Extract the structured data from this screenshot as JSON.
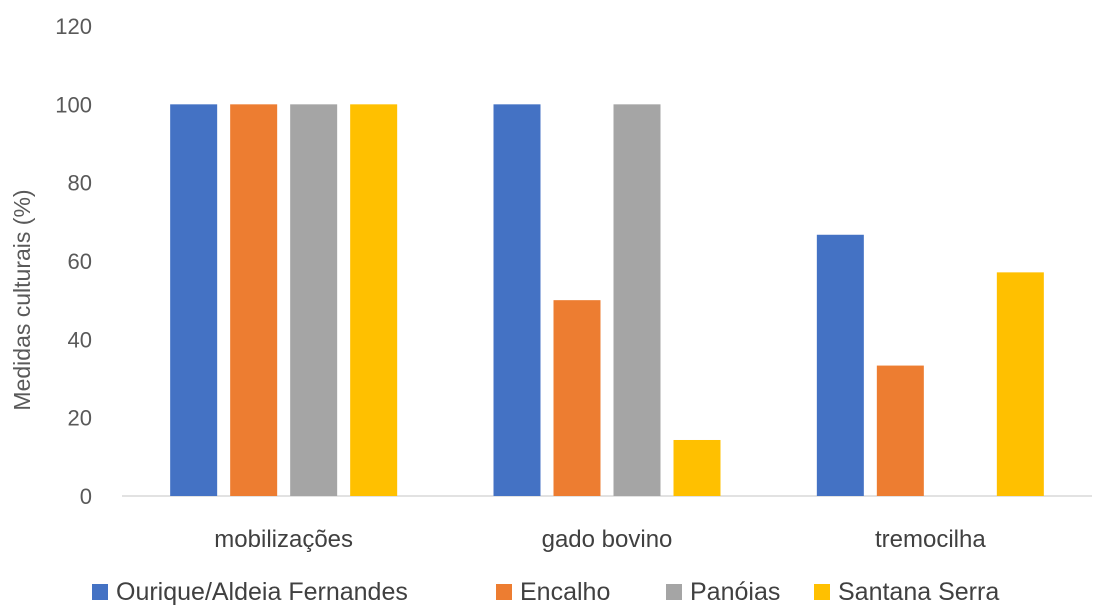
{
  "chart_data": {
    "type": "bar",
    "title": "",
    "xlabel": "",
    "ylabel": "Medidas culturais (%)",
    "ylim": [
      0,
      120
    ],
    "yticks": [
      0,
      20,
      40,
      60,
      80,
      100,
      120
    ],
    "grid": false,
    "legend_position": "bottom",
    "categories": [
      "mobilizações",
      "gado bovino",
      "tremocilha"
    ],
    "series": [
      {
        "name": "Ourique/Aldeia Fernandes",
        "color": "#4472C4",
        "values": [
          100,
          100,
          66.7
        ]
      },
      {
        "name": "Encalho",
        "color": "#ED7D31",
        "values": [
          100,
          50,
          33.3
        ]
      },
      {
        "name": "Panóias",
        "color": "#A5A5A5",
        "values": [
          100,
          100,
          0
        ]
      },
      {
        "name": "Santana Serra",
        "color": "#FFC000",
        "values": [
          100,
          14.3,
          57.1
        ]
      }
    ]
  }
}
